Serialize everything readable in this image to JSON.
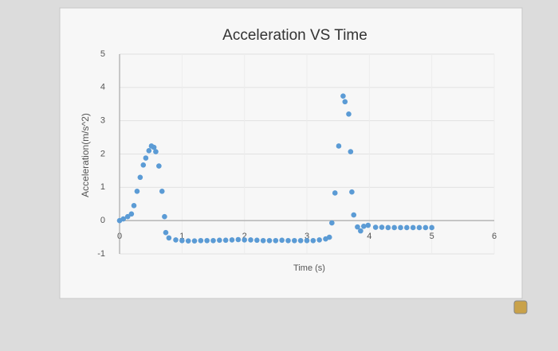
{
  "chart_data": {
    "type": "scatter",
    "title": "Acceleration VS Time",
    "x_label": "Time (s)",
    "y_label": "Acceleration(m/s^2)",
    "x": [
      0,
      0.06,
      0.13,
      0.19,
      0.23,
      0.28,
      0.33,
      0.38,
      0.42,
      0.47,
      0.51,
      0.55,
      0.58,
      0.63,
      0.68,
      0.72,
      0.74,
      0.79,
      0.9,
      1.0,
      1.1,
      1.2,
      1.3,
      1.4,
      1.5,
      1.6,
      1.7,
      1.8,
      1.9,
      2.0,
      2.1,
      2.2,
      2.3,
      2.4,
      2.5,
      2.6,
      2.7,
      2.8,
      2.9,
      3.0,
      3.1,
      3.2,
      3.3,
      3.36,
      3.4,
      3.45,
      3.51,
      3.58,
      3.61,
      3.67,
      3.7,
      3.72,
      3.75,
      3.81,
      3.86,
      3.91,
      3.98,
      4.1,
      4.2,
      4.3,
      4.4,
      4.5,
      4.6,
      4.7,
      4.8,
      4.9,
      5.0
    ],
    "series": [
      {
        "color": "#5b9bd5",
        "values": [
          0,
          0.05,
          0.12,
          0.2,
          0.45,
          0.88,
          1.3,
          1.67,
          1.88,
          2.1,
          2.24,
          2.2,
          2.07,
          1.64,
          0.88,
          0.12,
          -0.36,
          -0.52,
          -0.58,
          -0.6,
          -0.61,
          -0.61,
          -0.6,
          -0.6,
          -0.6,
          -0.59,
          -0.59,
          -0.58,
          -0.57,
          -0.58,
          -0.58,
          -0.59,
          -0.6,
          -0.6,
          -0.6,
          -0.59,
          -0.6,
          -0.6,
          -0.6,
          -0.6,
          -0.6,
          -0.58,
          -0.55,
          -0.5,
          -0.07,
          0.83,
          2.24,
          3.74,
          3.57,
          3.2,
          2.07,
          0.86,
          0.17,
          -0.19,
          -0.31,
          -0.17,
          -0.14,
          -0.2,
          -0.2,
          -0.21,
          -0.21,
          -0.21,
          -0.21,
          -0.21,
          -0.21,
          -0.21,
          -0.21
        ]
      }
    ],
    "xlim": [
      0,
      6
    ],
    "xticks": [
      0,
      1,
      2,
      3,
      4,
      5,
      6
    ],
    "ylim": [
      -1,
      5
    ],
    "yticks": [
      -1,
      0,
      1,
      2,
      3,
      4,
      5
    ],
    "grid": true
  }
}
